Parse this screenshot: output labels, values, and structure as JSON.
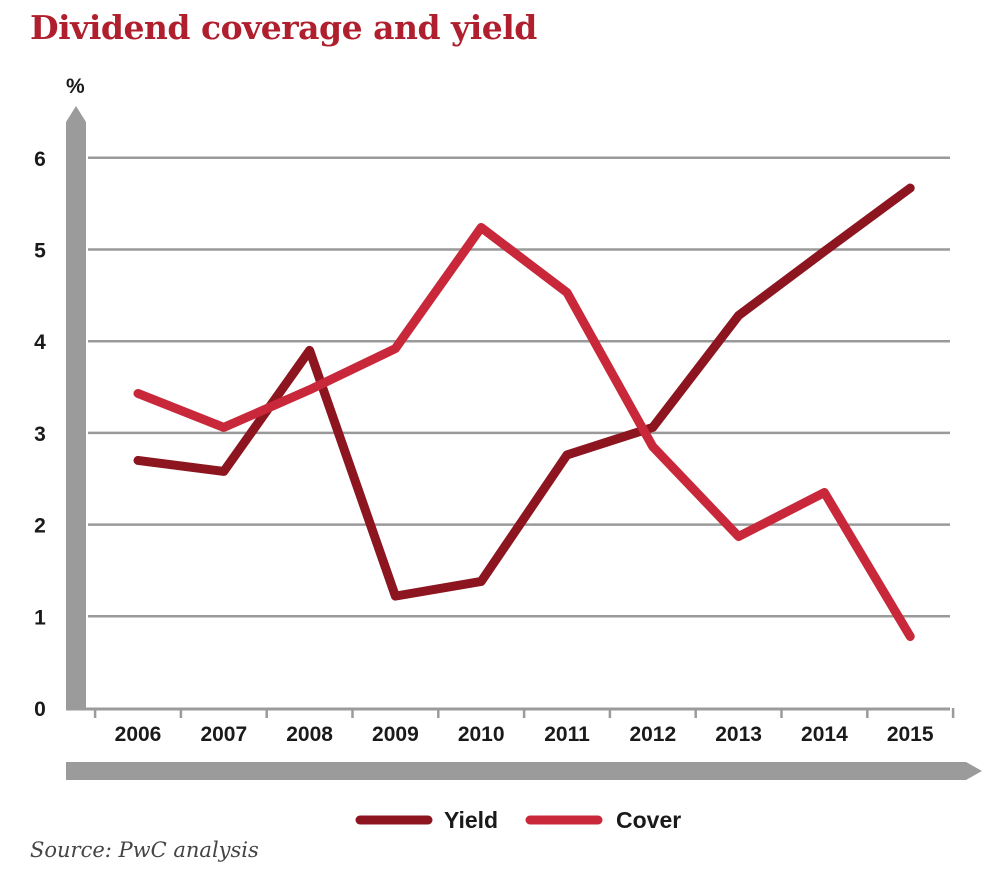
{
  "title": "Dividend coverage and yield",
  "source": "Source: PwC analysis",
  "colors": {
    "yield": "#8c1520",
    "cover": "#c8283a",
    "grid": "#9a9a9a",
    "axis": "#9b9b9b",
    "title": "#b01f2e"
  },
  "chart_data": {
    "type": "line",
    "unit_label": "%",
    "x": [
      "2006",
      "2007",
      "2008",
      "2009",
      "2010",
      "2011",
      "2012",
      "2013",
      "2014",
      "2015"
    ],
    "yticks": [
      "0",
      "1",
      "2",
      "3",
      "4",
      "5",
      "6"
    ],
    "ylim": [
      0,
      6.5
    ],
    "grid": true,
    "legend_position": "bottom",
    "series": [
      {
        "name": "Yield",
        "color": "#8c1520",
        "values": [
          2.7,
          2.58,
          3.9,
          1.22,
          1.38,
          2.76,
          3.06,
          4.28,
          4.98,
          5.67
        ]
      },
      {
        "name": "Cover",
        "color": "#c8283a",
        "values": [
          3.43,
          3.06,
          3.47,
          3.92,
          5.24,
          4.53,
          2.85,
          1.87,
          2.35,
          0.78
        ]
      }
    ]
  }
}
